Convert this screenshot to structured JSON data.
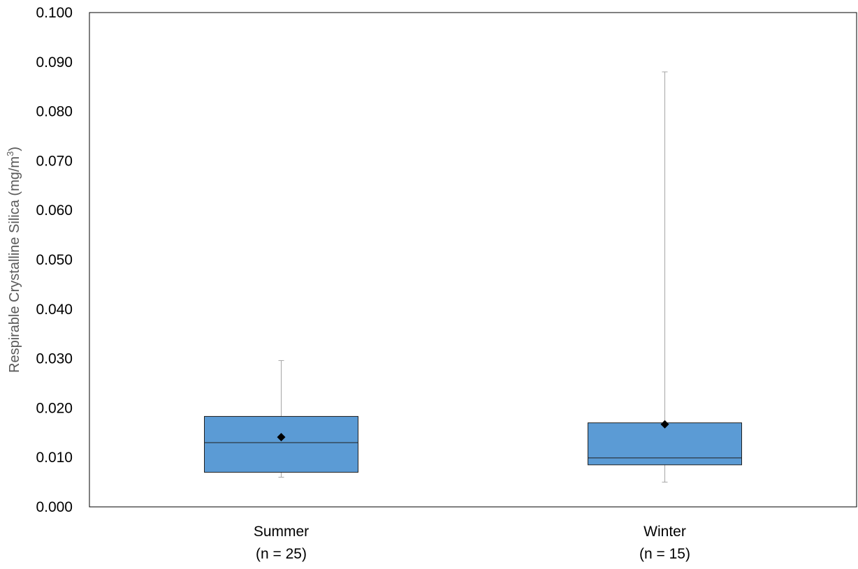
{
  "chart_data": {
    "type": "box",
    "title": "",
    "ylabel": {
      "main": "Respirable Crystalline Silica (mg/m",
      "superscript": "3",
      "close": ")"
    },
    "xlabel": "",
    "ylim": [
      0,
      0.1
    ],
    "y_ticks": [
      "0.000",
      "0.010",
      "0.020",
      "0.030",
      "0.040",
      "0.050",
      "0.060",
      "0.070",
      "0.080",
      "0.090",
      "0.100"
    ],
    "grid": false,
    "legend": "none",
    "categories": [
      {
        "name": "Summer",
        "sample": "(n = 25)"
      },
      {
        "name": "Winter",
        "sample": "(n = 15)"
      }
    ],
    "boxes": [
      {
        "min": 0.006,
        "q1": 0.007,
        "median": 0.013,
        "q3": 0.0183,
        "max": 0.0296,
        "mean": 0.0141
      },
      {
        "min": 0.005,
        "q1": 0.0085,
        "median": 0.0099,
        "q3": 0.017,
        "max": 0.088,
        "mean": 0.0167
      }
    ],
    "colors": {
      "box_fill": "#5B9BD5",
      "box_stroke": "#1F1F1F",
      "whisker": "#A6A6A6",
      "mean_marker": "#000000",
      "plot_border": "#000000"
    }
  }
}
